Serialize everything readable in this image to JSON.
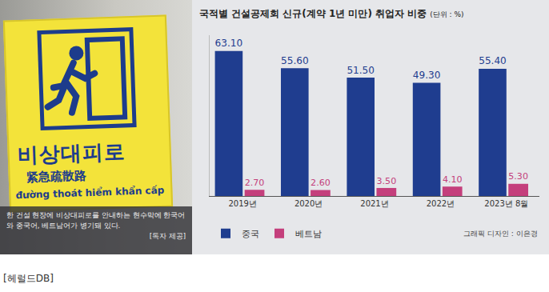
{
  "chart_data": {
    "type": "bar",
    "title": "국적별 건설공제회 신규(계약 1년 미만) 취업자 비중",
    "subtitle": "(단위 : %)",
    "categories": [
      "2019년",
      "2020년",
      "2021년",
      "2022년",
      "2023년 8월"
    ],
    "series": [
      {
        "name": "중국",
        "color": "#1f3d8f",
        "values": [
          63.1,
          55.6,
          51.5,
          49.3,
          55.4
        ],
        "value_labels": [
          "63.10",
          "55.60",
          "51.50",
          "49.30",
          "55.40"
        ]
      },
      {
        "name": "베트남",
        "color": "#c43f7c",
        "values": [
          2.7,
          2.6,
          3.5,
          4.1,
          5.3
        ],
        "value_labels": [
          "2.70",
          "2.60",
          "3.50",
          "4.10",
          "5.30"
        ]
      }
    ],
    "ylim": [
      0,
      70
    ],
    "data_labels": true,
    "tick_labels": "x",
    "legend": "bottom left",
    "annotations": [
      "그래픽 디자인 : 이은경"
    ]
  },
  "photo": {
    "sign": [
      "비상대피로",
      "紧急疏散路",
      "đường thoát hiểm khẩn cấp"
    ],
    "caption": "한 건설 현장에 비상대피로를 안내하는 현수막에 한국어와 중국어, 베트남어가 병기돼 있다.",
    "caption_credit": "[독자 제공]"
  },
  "source": "[헤럴드DB]"
}
